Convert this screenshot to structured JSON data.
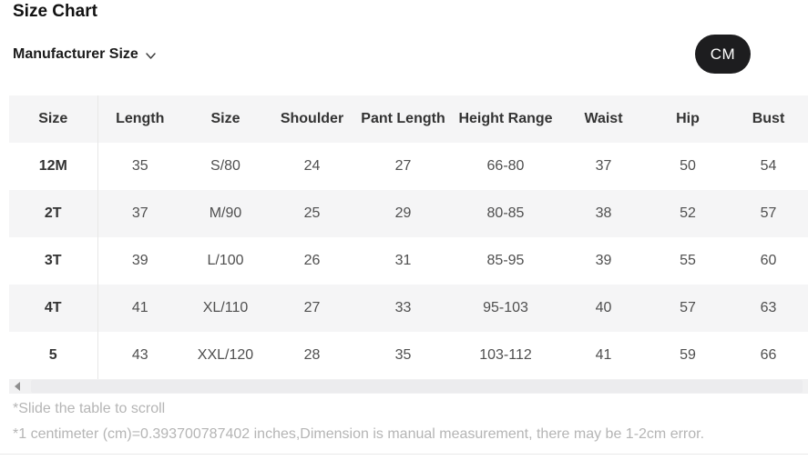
{
  "page": {
    "title": "Size Chart"
  },
  "controls": {
    "manufacturer_size_label": "Manufacturer Size",
    "unit_button_label": "CM"
  },
  "table": {
    "columns": [
      "Size",
      "Length",
      "Size",
      "Shoulder",
      "Pant Length",
      "Height Range",
      "Waist",
      "Hip",
      "Bust"
    ],
    "rows": [
      [
        "12M",
        "35",
        "S/80",
        "24",
        "27",
        "66-80",
        "37",
        "50",
        "54"
      ],
      [
        "2T",
        "37",
        "M/90",
        "25",
        "29",
        "80-85",
        "38",
        "52",
        "57"
      ],
      [
        "3T",
        "39",
        "L/100",
        "26",
        "31",
        "85-95",
        "39",
        "55",
        "60"
      ],
      [
        "4T",
        "41",
        "XL/110",
        "27",
        "33",
        "95-103",
        "40",
        "57",
        "63"
      ],
      [
        "5",
        "43",
        "XXL/120",
        "28",
        "35",
        "103-112",
        "41",
        "59",
        "66"
      ]
    ]
  },
  "notes": {
    "scroll_hint": "*Slide the table to scroll",
    "measurement_note": "*1 centimeter (cm)=0.393700787402 inches,Dimension is manual measurement, there may be 1-2cm error."
  },
  "colors": {
    "accent_button_bg": "#1d1d1f",
    "accent_button_text": "#ffffff",
    "table_stripe_bg": "#f5f5f6",
    "table_header_text": "#333333",
    "table_cell_text": "#4f4f4f",
    "note_text": "#b5b5b5",
    "divider": "#e7e7e7"
  }
}
